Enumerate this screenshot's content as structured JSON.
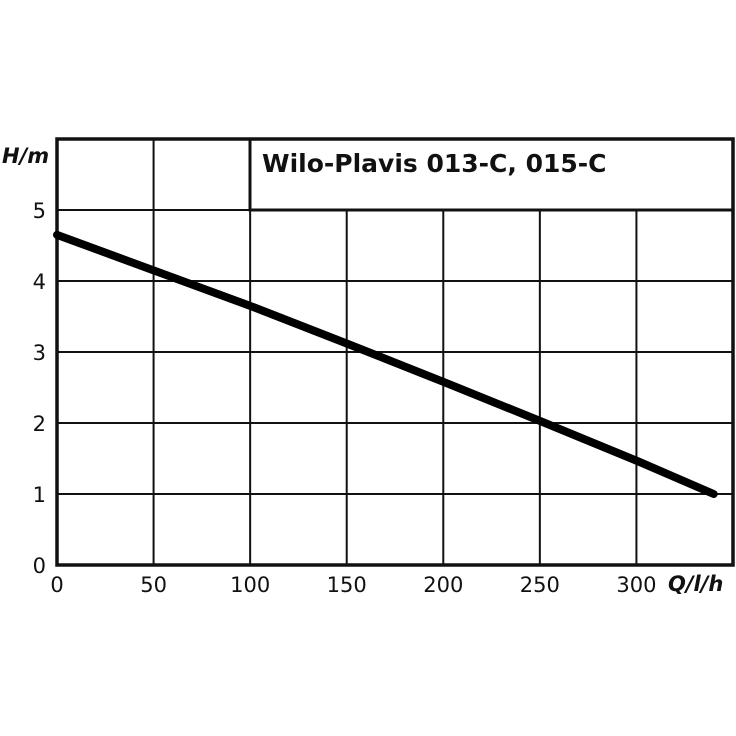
{
  "chart_data": {
    "type": "line",
    "title": "Wilo-Plavis 013-C, 015-C",
    "xlabel": "Q/l/h",
    "ylabel": "H/m",
    "xlim": [
      0,
      350
    ],
    "ylim": [
      0,
      6
    ],
    "x_ticks": [
      "0",
      "50",
      "100",
      "150",
      "200",
      "250",
      "300"
    ],
    "y_ticks": [
      "0",
      "1",
      "2",
      "3",
      "4",
      "5"
    ],
    "grid": true,
    "legend": "none",
    "series": [
      {
        "name": "Wilo-Plavis 013-C, 015-C",
        "x": [
          0,
          50,
          100,
          150,
          200,
          250,
          300,
          340
        ],
        "y": [
          4.65,
          4.15,
          3.65,
          3.12,
          2.58,
          2.03,
          1.47,
          1.0
        ]
      }
    ]
  }
}
